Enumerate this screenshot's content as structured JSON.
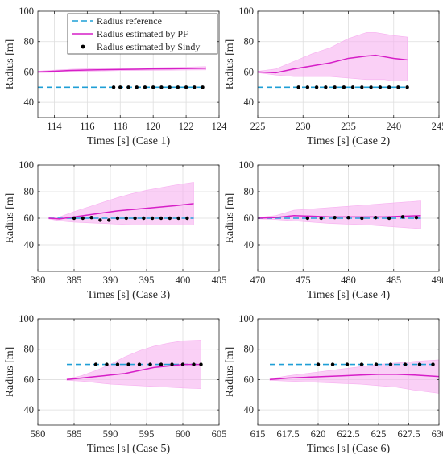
{
  "colors": {
    "reference": "#1f9fd6",
    "pf_line": "#d61fc7",
    "pf_band": "#f7b0f0",
    "sindy": "#000000",
    "axes": "#262626",
    "grid": "#dedede"
  },
  "legend": {
    "placement": "top-right of first panel",
    "entries": [
      {
        "label": "Radius reference",
        "style": "dashed"
      },
      {
        "label": "Radius estimated by PF",
        "style": "line"
      },
      {
        "label": "Radius estimated by Sindy",
        "style": "dots"
      }
    ]
  },
  "chart_data": [
    {
      "type": "line",
      "grid": true,
      "xlabel": "Times [s]  (Case 1)",
      "ylabel": "Radius [m]",
      "xlim": [
        113,
        124
      ],
      "ylim": [
        30,
        100
      ],
      "xticks": [
        "114",
        "116",
        "118",
        "120",
        "122",
        "124"
      ],
      "xtick_values": [
        114,
        116,
        118,
        120,
        122,
        124
      ],
      "yticks": [
        "40",
        "60",
        "80",
        "100"
      ],
      "ytick_values": [
        40,
        60,
        80,
        100
      ],
      "reference": {
        "x": [
          113,
          123.2
        ],
        "y": 50
      },
      "pf": {
        "x": [
          113,
          114,
          115,
          116,
          117,
          118,
          119,
          120,
          121,
          122,
          123.2
        ],
        "y": [
          60,
          60.5,
          61,
          61.3,
          61.5,
          61.7,
          61.8,
          62,
          62.1,
          62.3,
          62.5
        ],
        "lower": [
          59.5,
          59.8,
          60.2,
          60.5,
          60.7,
          60.9,
          61,
          61.1,
          61.2,
          61.3,
          61.4
        ],
        "upper": [
          60.5,
          61.2,
          61.8,
          62.1,
          62.3,
          62.5,
          62.6,
          62.8,
          63,
          63.2,
          63.5
        ]
      },
      "sindy": {
        "x": [
          117.6,
          118,
          118.5,
          119,
          119.5,
          120,
          120.5,
          121,
          121.5,
          122,
          122.5,
          123
        ],
        "y": [
          50,
          50,
          50,
          50,
          50,
          50,
          50,
          50,
          50,
          50,
          50,
          50
        ]
      }
    },
    {
      "type": "line",
      "grid": true,
      "xlabel": "Times [s]  (Case 2)",
      "ylabel": "Radius [m]",
      "xlim": [
        225,
        245
      ],
      "ylim": [
        30,
        100
      ],
      "xticks": [
        "225",
        "230",
        "235",
        "240",
        "245"
      ],
      "xtick_values": [
        225,
        230,
        235,
        240,
        245
      ],
      "yticks": [
        "40",
        "60",
        "80",
        "100"
      ],
      "ytick_values": [
        40,
        60,
        80,
        100
      ],
      "reference": {
        "x": [
          225,
          241.5
        ],
        "y": 50
      },
      "pf": {
        "x": [
          225,
          227,
          229,
          231,
          233,
          235,
          237,
          238,
          239,
          240,
          241.5
        ],
        "y": [
          60,
          59.5,
          62,
          64,
          66,
          69,
          70.5,
          71,
          70,
          69,
          68
        ],
        "lower": [
          59.5,
          58,
          57,
          57,
          57,
          56,
          55,
          55,
          55,
          54,
          54
        ],
        "upper": [
          60.5,
          62,
          67,
          72,
          76,
          82,
          86,
          86,
          85,
          84,
          83
        ]
      },
      "sindy": {
        "x": [
          229.5,
          230.5,
          231.5,
          232.5,
          233.5,
          234.5,
          235.5,
          236.5,
          237.5,
          238.5,
          239.5,
          240.5,
          241.5
        ],
        "y": [
          50,
          50,
          50,
          50,
          50,
          50,
          50,
          50,
          50,
          50,
          50,
          50,
          50
        ]
      }
    },
    {
      "type": "line",
      "grid": true,
      "xlabel": "Times [s]  (Case 3)",
      "ylabel": "Radius [m]",
      "xlim": [
        380,
        405
      ],
      "ylim": [
        20,
        100
      ],
      "xticks": [
        "380",
        "385",
        "390",
        "395",
        "400",
        "405"
      ],
      "xtick_values": [
        380,
        385,
        390,
        395,
        400,
        405
      ],
      "yticks": [
        "40",
        "60",
        "80",
        "100"
      ],
      "ytick_values": [
        40,
        60,
        80,
        100
      ],
      "reference": {
        "x": [
          381.5,
          401.5
        ],
        "y": 60
      },
      "pf": {
        "x": [
          381.5,
          383,
          385,
          387,
          389,
          391,
          393,
          395,
          397,
          399,
          401.5
        ],
        "y": [
          60,
          59.5,
          61,
          62.5,
          64,
          65.5,
          66.5,
          67.5,
          68.5,
          69.5,
          71
        ],
        "lower": [
          59.5,
          58,
          57,
          56.5,
          56,
          55.5,
          55,
          55,
          55,
          55,
          55
        ],
        "upper": [
          60.5,
          61,
          65,
          68.5,
          72,
          75.5,
          78.5,
          81,
          83,
          85,
          87
        ]
      },
      "sindy": {
        "x": [
          385,
          386.2,
          387.4,
          388.6,
          389.8,
          391,
          392.2,
          393.4,
          394.6,
          395.8,
          397,
          398.2,
          399.4,
          400.6
        ],
        "y": [
          60,
          60,
          60.5,
          58.5,
          58.5,
          60,
          60,
          60,
          60,
          60,
          60,
          60,
          60,
          60
        ]
      }
    },
    {
      "type": "line",
      "grid": true,
      "xlabel": "Times [s]  (Case 4)",
      "ylabel": "Radius [m]",
      "xlim": [
        470,
        490
      ],
      "ylim": [
        20,
        100
      ],
      "xticks": [
        "470",
        "475",
        "480",
        "485",
        "490"
      ],
      "xtick_values": [
        470,
        475,
        480,
        485,
        490
      ],
      "yticks": [
        "40",
        "60",
        "80",
        "100"
      ],
      "ytick_values": [
        40,
        60,
        80,
        100
      ],
      "reference": {
        "x": [
          470,
          488
        ],
        "y": 60
      },
      "pf": {
        "x": [
          470,
          472,
          474,
          476,
          478,
          480,
          482,
          484,
          486,
          488
        ],
        "y": [
          60,
          60.5,
          62,
          61.5,
          61,
          61,
          61,
          61,
          61.5,
          62
        ],
        "lower": [
          59.5,
          59,
          58,
          57,
          56,
          55.5,
          55,
          54,
          53,
          52
        ],
        "upper": [
          60.5,
          62,
          66,
          67,
          68,
          69,
          70,
          71,
          72,
          73
        ]
      },
      "sindy": {
        "x": [
          475.5,
          477,
          478.5,
          480,
          481.5,
          483,
          484.5,
          486,
          487.5
        ],
        "y": [
          60,
          60,
          60.5,
          60.5,
          60,
          60.5,
          60,
          61,
          60.5
        ]
      }
    },
    {
      "type": "line",
      "grid": true,
      "xlabel": "Times [s]  (Case 5)",
      "ylabel": "Radius [m]",
      "xlim": [
        580,
        605
      ],
      "ylim": [
        30,
        100
      ],
      "xticks": [
        "580",
        "585",
        "590",
        "595",
        "600",
        "605"
      ],
      "xtick_values": [
        580,
        585,
        590,
        595,
        600,
        605
      ],
      "yticks": [
        "40",
        "60",
        "80",
        "100"
      ],
      "ytick_values": [
        40,
        60,
        80,
        100
      ],
      "reference": {
        "x": [
          584,
          602.5
        ],
        "y": 70
      },
      "pf": {
        "x": [
          584,
          586,
          588,
          590,
          592,
          594,
          596,
          598,
          600,
          602.5
        ],
        "y": [
          60,
          61,
          62,
          63,
          64,
          66,
          68,
          69,
          70,
          70
        ],
        "lower": [
          59.5,
          59,
          58,
          57,
          56.5,
          56,
          55.5,
          55,
          54.5,
          54
        ],
        "upper": [
          60.5,
          62.5,
          66,
          70,
          75,
          79,
          82,
          84,
          85.5,
          86
        ]
      },
      "sindy": {
        "x": [
          588,
          589.5,
          591,
          592.5,
          594,
          595.5,
          597,
          598.5,
          600,
          601.5,
          602.5
        ],
        "y": [
          70,
          70,
          70,
          70,
          70,
          70,
          70,
          70,
          70,
          70,
          70
        ]
      }
    },
    {
      "type": "line",
      "grid": true,
      "xlabel": "Times [s]  (Case 6)",
      "ylabel": "Radius [m]",
      "xlim": [
        615,
        630
      ],
      "ylim": [
        30,
        100
      ],
      "xticks": [
        "615",
        "617.5",
        "620",
        "622.5",
        "625",
        "627.5",
        "630"
      ],
      "xtick_values": [
        615,
        617.5,
        620,
        622.5,
        625,
        627.5,
        630
      ],
      "yticks": [
        "40",
        "60",
        "80",
        "100"
      ],
      "ytick_values": [
        40,
        60,
        80,
        100
      ],
      "reference": {
        "x": [
          616,
          629.5
        ],
        "y": 70
      },
      "pf": {
        "x": [
          616,
          617.5,
          619,
          620.5,
          622,
          623.5,
          625,
          626.5,
          628,
          630
        ],
        "y": [
          60,
          61,
          61.5,
          62,
          62.5,
          63,
          63.5,
          63.5,
          63,
          62
        ],
        "lower": [
          59.5,
          59,
          58.5,
          58,
          57.5,
          57,
          56,
          55,
          53,
          51
        ],
        "upper": [
          60.5,
          62.5,
          64,
          65.5,
          67,
          68.5,
          70,
          71,
          72,
          73
        ]
      },
      "sindy": {
        "x": [
          620,
          621.2,
          622.4,
          623.6,
          624.8,
          626,
          627.2,
          628.4,
          629.5
        ],
        "y": [
          70,
          70,
          70,
          70,
          70,
          70,
          70,
          70,
          70
        ]
      }
    }
  ]
}
